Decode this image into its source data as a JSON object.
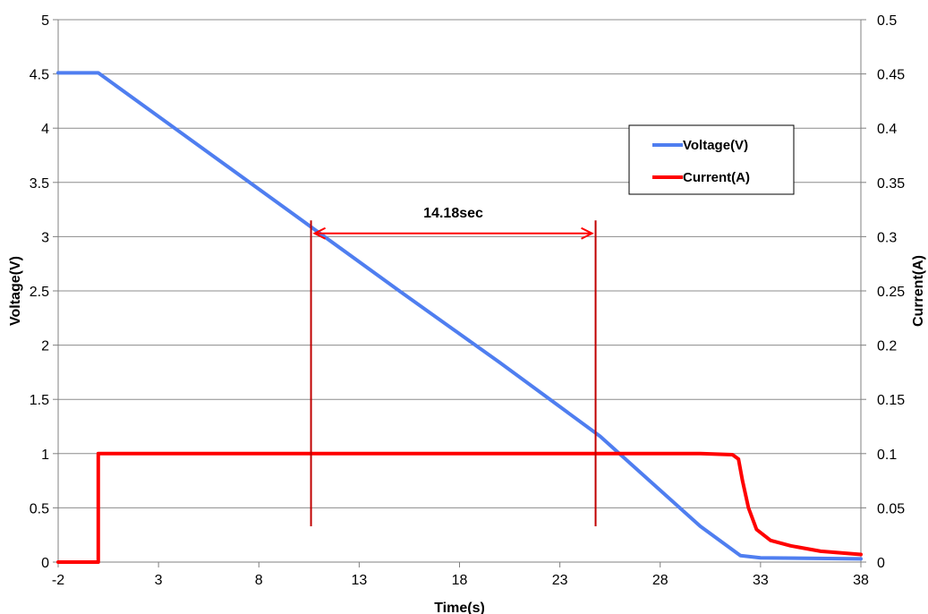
{
  "chart_data": {
    "type": "line",
    "xlabel": "Time(s)",
    "ylabel_left": "Voltage(V)",
    "ylabel_right": "Current(A)",
    "xlim": [
      -2,
      38
    ],
    "x_ticks": [
      "-2",
      "3",
      "8",
      "13",
      "18",
      "23",
      "28",
      "33",
      "38"
    ],
    "ylim_left": [
      0,
      5
    ],
    "y_ticks_left": [
      "0",
      "0.5",
      "1",
      "1.5",
      "2",
      "2.5",
      "3",
      "3.5",
      "4",
      "4.5",
      "5"
    ],
    "ylim_right": [
      0,
      0.5
    ],
    "y_ticks_right": [
      "0",
      "0.05",
      "0.1",
      "0.15",
      "0.2",
      "0.25",
      "0.3",
      "0.35",
      "0.4",
      "0.45",
      "0.5"
    ],
    "grid": "horizontal",
    "legend_position": "top-right",
    "series": [
      {
        "name": "Voltage(V)",
        "axis": "left",
        "color": "#4f7ef0",
        "x": [
          -2,
          0,
          5,
          10,
          15,
          20,
          25,
          30,
          32,
          33,
          38
        ],
        "y": [
          4.51,
          4.51,
          3.84,
          3.17,
          2.5,
          1.84,
          1.16,
          0.33,
          0.06,
          0.04,
          0.03
        ]
      },
      {
        "name": "Current(A)",
        "axis": "right",
        "color": "#ff0000",
        "x": [
          -2,
          0,
          0,
          5,
          10,
          15,
          20,
          25,
          30,
          31.6,
          31.9,
          32.1,
          32.4,
          32.8,
          33.5,
          34.5,
          36,
          38
        ],
        "y": [
          0.0,
          0.0,
          0.1,
          0.1,
          0.1,
          0.1,
          0.1,
          0.1,
          0.1,
          0.099,
          0.095,
          0.075,
          0.05,
          0.03,
          0.02,
          0.015,
          0.01,
          0.007
        ]
      }
    ],
    "annotations": {
      "label": "14.18sec",
      "start_x": 10.6,
      "end_x": 24.78,
      "marker_y_range": [
        0.33,
        3.15
      ],
      "arrow_y": 3.03,
      "color": "#c00000",
      "arrow_color": "#ff0000"
    }
  }
}
